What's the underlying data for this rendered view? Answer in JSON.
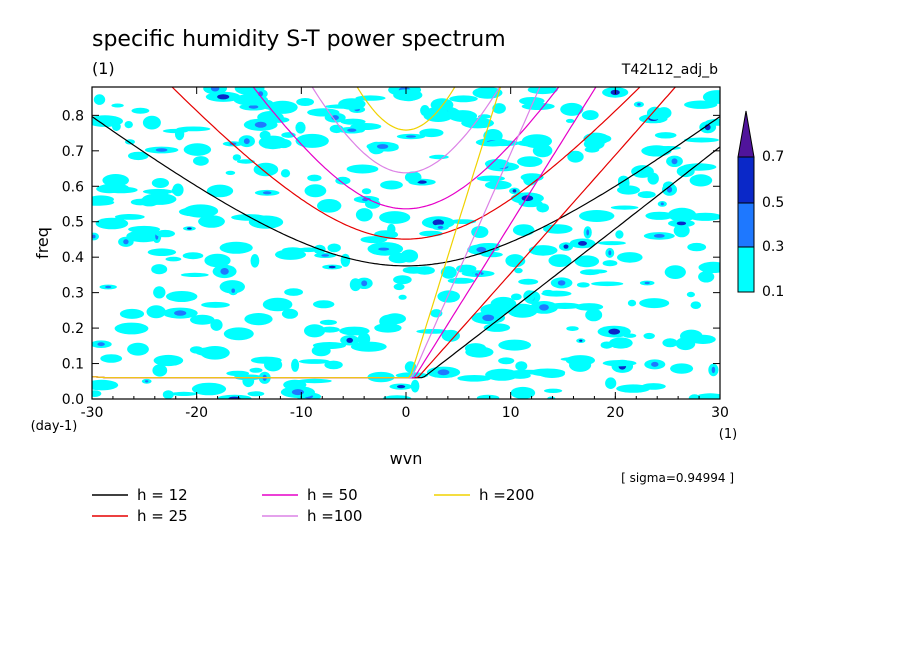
{
  "header": {
    "title": "specific humidity S-T power spectrum",
    "units": "(1)",
    "run_label": "T42L12_adj_b",
    "sigma_note": "[ sigma=0.94994 ]"
  },
  "chart_data": {
    "type": "heatmap",
    "xlabel": "wvn",
    "ylabel": "freq",
    "x_unit": "(1)",
    "y_unit": "(day-1)",
    "xlim": [
      -30,
      30
    ],
    "ylim": [
      0,
      0.88
    ],
    "x_ticks": [
      "-30",
      "-20",
      "-10",
      "0",
      "10",
      "20",
      "30"
    ],
    "x_tick_values": [
      -30,
      -20,
      -10,
      0,
      10,
      20,
      30
    ],
    "y_ticks": [
      "0.0",
      "0.1",
      "0.2",
      "0.3",
      "0.4",
      "0.5",
      "0.6",
      "0.7",
      "0.8"
    ],
    "y_tick_values": [
      0,
      0.1,
      0.2,
      0.3,
      0.4,
      0.5,
      0.6,
      0.7,
      0.8
    ],
    "contour_levels": [
      "0.1",
      "0.3",
      "0.5",
      "0.7"
    ],
    "contour_level_values": [
      0.1,
      0.3,
      0.5,
      0.7
    ],
    "colors": {
      "band_0_1": "#00ffff",
      "band_0_3": "#1e78ff",
      "band_0_5": "#0a28c8",
      "band_0_7": "#50149b"
    },
    "dispersion_curves": [
      {
        "name": "h = 12",
        "h": 12,
        "color": "#000000"
      },
      {
        "name": "h = 25",
        "h": 25,
        "color": "#e60000"
      },
      {
        "name": "h = 50",
        "h": 50,
        "color": "#e600c8"
      },
      {
        "name": "h =100",
        "h": 100,
        "color": "#dc82e6"
      },
      {
        "name": "h =200",
        "h": 200,
        "color": "#f0d200"
      }
    ]
  }
}
